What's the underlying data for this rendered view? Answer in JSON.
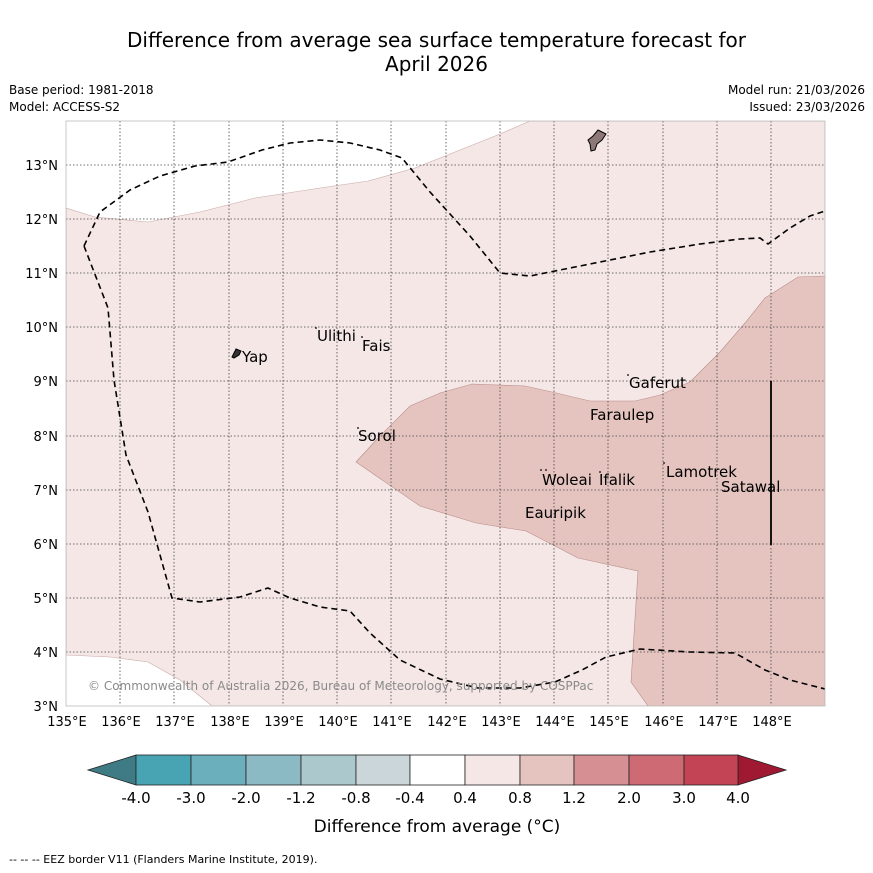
{
  "title": {
    "line1": "Difference from average sea surface temperature forecast for",
    "line2": "April 2026"
  },
  "meta": {
    "base_period": "Base period: 1981-2018",
    "model": "Model: ACCESS-S2",
    "model_run": "Model run: 21/03/2026",
    "issued": "Issued: 23/03/2026"
  },
  "map": {
    "lon_ticks": [
      "135°E",
      "136°E",
      "137°E",
      "138°E",
      "139°E",
      "140°E",
      "141°E",
      "142°E",
      "143°E",
      "144°E",
      "145°E",
      "146°E",
      "147°E",
      "148°E"
    ],
    "lat_ticks": [
      "3°N",
      "4°N",
      "5°N",
      "6°N",
      "7°N",
      "8°N",
      "9°N",
      "10°N",
      "11°N",
      "12°N",
      "13°N"
    ],
    "places": [
      "Yap",
      "Ulithi",
      "Fais",
      "Gaferut",
      "Faraulep",
      "Sorol",
      "Woleai",
      "Ifalik",
      "Lamotrek",
      "Satawal",
      "Eauripik"
    ],
    "copyright": "© Commonwealth of Australia 2026, Bureau of Meteorology, supported by COSPPac"
  },
  "colorbar": {
    "ticks": [
      "-4.0",
      "-3.0",
      "-2.0",
      "-1.2",
      "-0.8",
      "-0.4",
      "0.4",
      "0.8",
      "1.2",
      "2.0",
      "3.0",
      "4.0"
    ],
    "colors": [
      "#3f7b85",
      "#48a3b3",
      "#6cafbc",
      "#8bb9c4",
      "#abc8cd",
      "#cbd6da",
      "#ffffff",
      "#f4e7e6",
      "#e5c4c0",
      "#d68f93",
      "#cd6a74",
      "#c24455",
      "#a01933"
    ],
    "label": "Difference from average (°C)"
  },
  "footnote": "--  --  -- EEZ border V11 (Flanders Marine Institute, 2019)."
}
